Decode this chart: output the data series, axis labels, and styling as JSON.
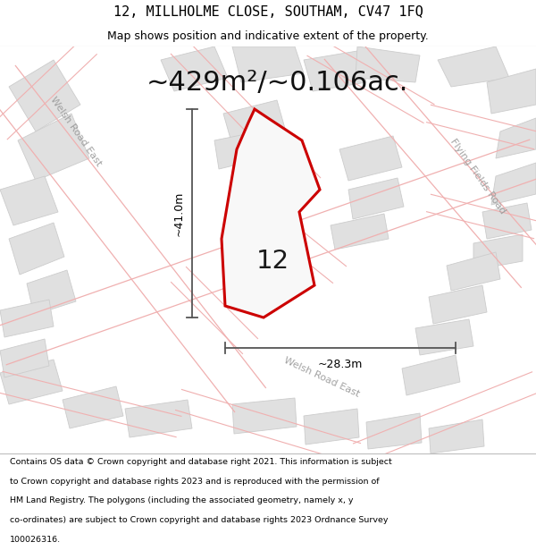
{
  "title": "12, MILLHOLME CLOSE, SOUTHAM, CV47 1FQ",
  "subtitle": "Map shows position and indicative extent of the property.",
  "area_text": "~429m²/~0.106ac.",
  "label_number": "12",
  "dim_height": "~41.0m",
  "dim_width": "~28.3m",
  "footer_lines": [
    "Contains OS data © Crown copyright and database right 2021. This information is subject",
    "to Crown copyright and database rights 2023 and is reproduced with the permission of",
    "HM Land Registry. The polygons (including the associated geometry, namely x, y",
    "co-ordinates) are subject to Crown copyright and database rights 2023 Ordnance Survey",
    "100026316."
  ],
  "map_bg": "#f5f5f5",
  "road_outline_color": "#f0b0b0",
  "block_fill": "#e0e0e0",
  "block_edge": "#cccccc",
  "plot_edge": "#cc0000",
  "plot_fill": "#f8f8f8",
  "dim_line_color": "#555555",
  "title_fontsize": 11,
  "subtitle_fontsize": 9,
  "area_fontsize": 22,
  "label_fontsize": 20,
  "dim_fontsize": 9,
  "road_label_fontsize": 8,
  "footer_fontsize": 6.8
}
